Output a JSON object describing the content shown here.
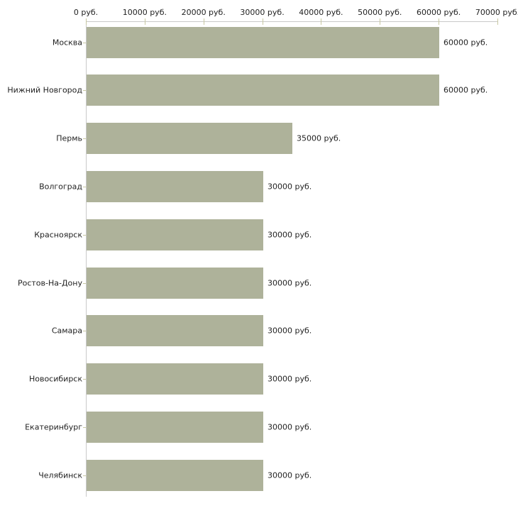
{
  "page": {
    "background": "#ffffff"
  },
  "chart_data": {
    "type": "bar",
    "orientation": "horizontal",
    "title": "",
    "legend_position": "none",
    "grid": false,
    "categories": [
      "Москва",
      "Нижний Новгород",
      "Пермь",
      "Волгоград",
      "Красноярск",
      "Ростов-На-Дону",
      "Самара",
      "Новосибирск",
      "Екатеринбург",
      "Челябинск"
    ],
    "values": [
      60000,
      60000,
      35000,
      30000,
      30000,
      30000,
      30000,
      30000,
      30000,
      30000
    ],
    "value_labels": [
      "60000 руб.",
      "60000 руб.",
      "35000 руб.",
      "30000 руб.",
      "30000 руб.",
      "30000 руб.",
      "30000 руб.",
      "30000 руб.",
      "30000 руб.",
      "30000 руб."
    ],
    "x_ticks": [
      0,
      10000,
      20000,
      30000,
      40000,
      50000,
      60000,
      70000
    ],
    "x_tick_labels": [
      "0 руб.",
      "10000 руб.",
      "20000 руб.",
      "30000 руб.",
      "40000 руб.",
      "50000 руб.",
      "60000 руб.",
      "70000 руб."
    ],
    "xlim": [
      0,
      70000
    ],
    "unit_suffix": "руб.",
    "colors": {
      "bar": "#aeb29a",
      "axis": "#c9c9c9",
      "tick": "#c8c8a2",
      "text": "#222222"
    }
  }
}
